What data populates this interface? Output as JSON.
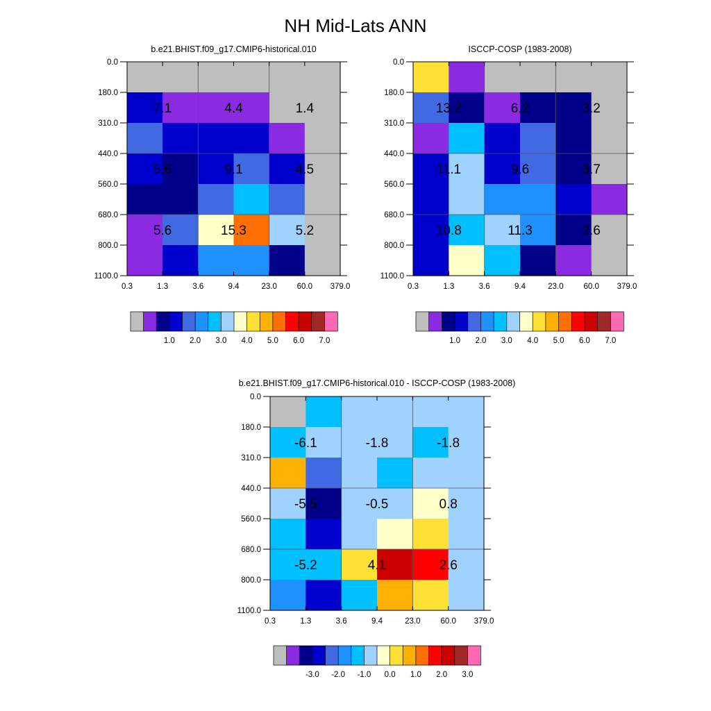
{
  "title": "NH Mid-Lats ANN",
  "x_ticks": [
    "0.3",
    "1.3",
    "3.6",
    "9.4",
    "23.0",
    "60.0",
    "379.0"
  ],
  "y_ticks": [
    "0.0",
    "180.0",
    "310.0",
    "440.0",
    "560.0",
    "680.0",
    "800.0",
    "1100.0"
  ],
  "palette": [
    "#bebebe",
    "#8a2be2",
    "#00008b",
    "#0000cd",
    "#4169e1",
    "#1e90ff",
    "#00bfff",
    "#a0d2ff",
    "#ffffc8",
    "#ffe135",
    "#ffb000",
    "#ff6e00",
    "#ff0000",
    "#cd0000",
    "#a02828",
    "#ff69b4"
  ],
  "chart_data": [
    {
      "type": "heatmap",
      "title": "b.e21.BHIST.f09_g17.CMIP6-historical.010",
      "color_index_grid": [
        [
          0,
          0,
          0,
          0,
          0,
          0
        ],
        [
          3,
          1,
          1,
          1,
          0,
          0
        ],
        [
          4,
          3,
          3,
          3,
          1,
          0
        ],
        [
          3,
          2,
          3,
          4,
          3,
          0
        ],
        [
          2,
          2,
          4,
          6,
          4,
          0
        ],
        [
          1,
          4,
          8,
          11,
          7,
          0
        ],
        [
          1,
          3,
          5,
          5,
          2,
          0
        ]
      ],
      "annotations": [
        {
          "label": "7.1",
          "col": 0.5,
          "row": 1.5
        },
        {
          "label": "4.4",
          "col": 2.5,
          "row": 1.5
        },
        {
          "label": "1.4",
          "col": 4.5,
          "row": 1.5
        },
        {
          "label": "5.6",
          "col": 0.5,
          "row": 3.5
        },
        {
          "label": "9.1",
          "col": 2.5,
          "row": 3.5
        },
        {
          "label": "4.5",
          "col": 4.5,
          "row": 3.5
        },
        {
          "label": "5.6",
          "col": 0.5,
          "row": 5.5
        },
        {
          "label": "15.3",
          "col": 2.5,
          "row": 5.5
        },
        {
          "label": "5.2",
          "col": 4.5,
          "row": 5.5
        }
      ],
      "colorbar_labels": [
        "1.0",
        "2.0",
        "3.0",
        "4.0",
        "5.0",
        "6.0",
        "7.0"
      ]
    },
    {
      "type": "heatmap",
      "title": "ISCCP-COSP (1983-2008)",
      "color_index_grid": [
        [
          9,
          1,
          0,
          0,
          0,
          0
        ],
        [
          4,
          2,
          1,
          2,
          2,
          0
        ],
        [
          1,
          6,
          3,
          4,
          2,
          0
        ],
        [
          3,
          7,
          3,
          4,
          2,
          0
        ],
        [
          3,
          7,
          5,
          5,
          3,
          1
        ],
        [
          3,
          6,
          7,
          5,
          2,
          0
        ],
        [
          3,
          8,
          6,
          2,
          1,
          0
        ]
      ],
      "annotations": [
        {
          "label": "13.2",
          "col": 0.5,
          "row": 1.5
        },
        {
          "label": "6.2",
          "col": 2.5,
          "row": 1.5
        },
        {
          "label": "3.2",
          "col": 4.5,
          "row": 1.5
        },
        {
          "label": "11.1",
          "col": 0.5,
          "row": 3.5
        },
        {
          "label": "9.6",
          "col": 2.5,
          "row": 3.5
        },
        {
          "label": "3.7",
          "col": 4.5,
          "row": 3.5
        },
        {
          "label": "10.8",
          "col": 0.5,
          "row": 5.5
        },
        {
          "label": "11.3",
          "col": 2.5,
          "row": 5.5
        },
        {
          "label": "2.6",
          "col": 4.5,
          "row": 5.5
        }
      ],
      "colorbar_labels": [
        "1.0",
        "2.0",
        "3.0",
        "4.0",
        "5.0",
        "6.0",
        "7.0"
      ]
    },
    {
      "type": "heatmap",
      "title": "b.e21.BHIST.f09_g17.CMIP6-historical.010 - ISCCP-COSP (1983-2008)",
      "color_index_grid": [
        [
          0,
          6,
          7,
          7,
          7,
          7
        ],
        [
          6,
          7,
          7,
          7,
          6,
          7
        ],
        [
          10,
          4,
          7,
          6,
          7,
          7
        ],
        [
          7,
          2,
          7,
          7,
          8,
          7
        ],
        [
          6,
          3,
          7,
          8,
          9,
          7
        ],
        [
          6,
          6,
          9,
          13,
          12,
          7
        ],
        [
          5,
          3,
          6,
          10,
          9,
          7
        ]
      ],
      "annotations": [
        {
          "label": "-6.1",
          "col": 0.5,
          "row": 1.5
        },
        {
          "label": "-1.8",
          "col": 2.5,
          "row": 1.5
        },
        {
          "label": "-1.8",
          "col": 4.5,
          "row": 1.5
        },
        {
          "label": "-5.5",
          "col": 0.5,
          "row": 3.5
        },
        {
          "label": "-0.5",
          "col": 2.5,
          "row": 3.5
        },
        {
          "label": "0.8",
          "col": 4.5,
          "row": 3.5
        },
        {
          "label": "-5.2",
          "col": 0.5,
          "row": 5.5
        },
        {
          "label": "4.1",
          "col": 2.5,
          "row": 5.5
        },
        {
          "label": "2.6",
          "col": 4.5,
          "row": 5.5
        }
      ],
      "colorbar_labels": [
        "-3.0",
        "-2.0",
        "-1.0",
        "0.0",
        "1.0",
        "2.0",
        "3.0"
      ]
    }
  ]
}
